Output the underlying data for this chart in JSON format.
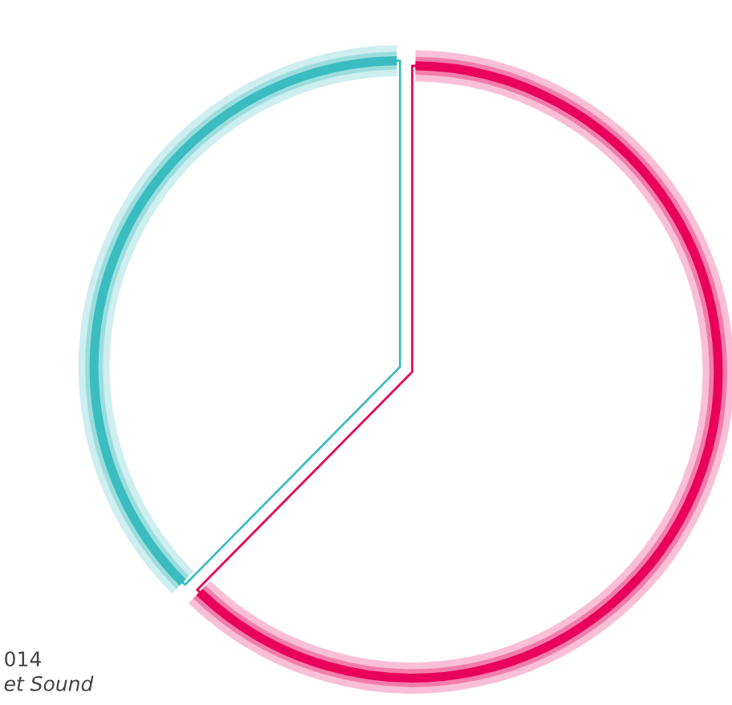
{
  "chart_data": {
    "type": "pie",
    "categories": [
      null,
      null
    ],
    "values": [
      62.4,
      37.6
    ],
    "colors": [
      "#e8005a",
      "#3bbcc0"
    ],
    "annotations": [
      "014",
      "et Sound"
    ]
  }
}
